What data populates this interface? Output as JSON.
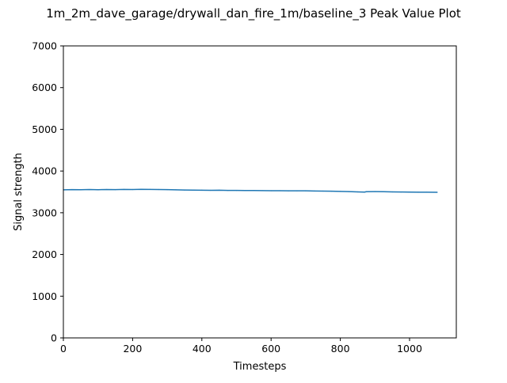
{
  "chart_data": {
    "type": "line",
    "title": "1m_2m_dave_garage/drywall_dan_fire_1m/baseline_3 Peak Value Plot",
    "xlabel": "Timesteps",
    "ylabel": "Signal strength",
    "xlim": [
      0,
      1135
    ],
    "ylim": [
      0,
      7000
    ],
    "xticks": [
      0,
      200,
      400,
      600,
      800,
      1000
    ],
    "yticks": [
      0,
      1000,
      2000,
      3000,
      4000,
      5000,
      6000,
      7000
    ],
    "grid": false,
    "legend": "none",
    "series": [
      {
        "color": "#1f77b4",
        "x": [
          0,
          25,
          50,
          75,
          100,
          125,
          150,
          175,
          200,
          225,
          250,
          275,
          300,
          325,
          350,
          375,
          400,
          425,
          450,
          475,
          500,
          525,
          550,
          575,
          600,
          625,
          650,
          675,
          700,
          725,
          750,
          775,
          800,
          825,
          850,
          870,
          875,
          900,
          925,
          950,
          975,
          1000,
          1025,
          1050,
          1080
        ],
        "y": [
          3550,
          3555,
          3552,
          3556,
          3553,
          3558,
          3555,
          3560,
          3557,
          3562,
          3560,
          3557,
          3555,
          3550,
          3545,
          3542,
          3540,
          3538,
          3540,
          3536,
          3535,
          3534,
          3532,
          3530,
          3528,
          3528,
          3526,
          3526,
          3525,
          3522,
          3520,
          3516,
          3512,
          3506,
          3500,
          3495,
          3505,
          3506,
          3504,
          3500,
          3498,
          3496,
          3494,
          3492,
          3490
        ]
      }
    ]
  }
}
